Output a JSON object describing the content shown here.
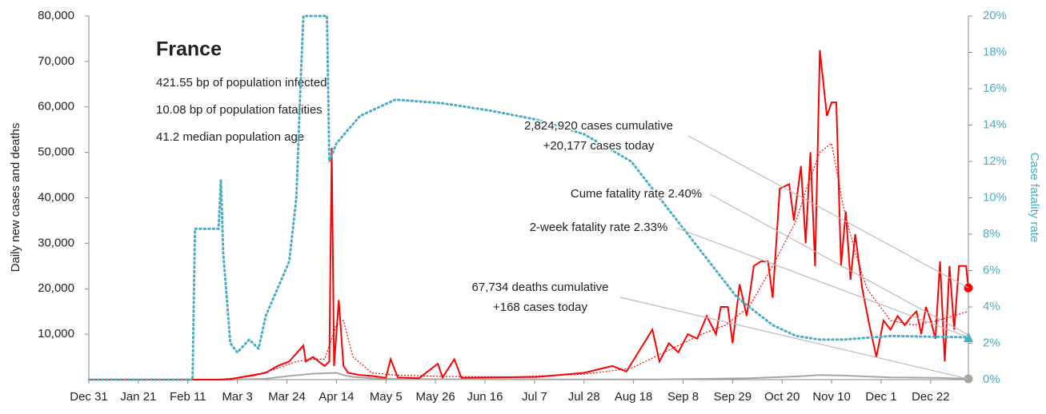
{
  "chart_data": {
    "type": "line",
    "title": "France",
    "info": [
      "421.55 bp of population infected",
      "10.08 bp of population fatalities",
      "41.2 median population age"
    ],
    "ylabel": "Daily new cases and deaths",
    "y2label": "Case fatality rate",
    "xlim": [
      0,
      373
    ],
    "xticks": [
      {
        "value": 0,
        "label": "Dec 31"
      },
      {
        "value": 21,
        "label": "Jan 21"
      },
      {
        "value": 42,
        "label": "Feb 11"
      },
      {
        "value": 63,
        "label": "Mar 3"
      },
      {
        "value": 84,
        "label": "Mar 24"
      },
      {
        "value": 105,
        "label": "Apr 14"
      },
      {
        "value": 126,
        "label": "May 5"
      },
      {
        "value": 147,
        "label": "May 26"
      },
      {
        "value": 168,
        "label": "Jun 16"
      },
      {
        "value": 189,
        "label": "Jul 7"
      },
      {
        "value": 210,
        "label": "Jul 28"
      },
      {
        "value": 231,
        "label": "Aug 18"
      },
      {
        "value": 252,
        "label": "Sep 8"
      },
      {
        "value": 273,
        "label": "Sep 29"
      },
      {
        "value": 294,
        "label": "Oct 20"
      },
      {
        "value": 315,
        "label": "Nov 10"
      },
      {
        "value": 336,
        "label": "Dec 1"
      },
      {
        "value": 357,
        "label": "Dec 22"
      }
    ],
    "ylim": [
      0,
      80000
    ],
    "yticks": [
      {
        "value": 10000,
        "label": "10,000"
      },
      {
        "value": 20000,
        "label": "20,000"
      },
      {
        "value": 30000,
        "label": "30,000"
      },
      {
        "value": 40000,
        "label": "40,000"
      },
      {
        "value": 50000,
        "label": "50,000"
      },
      {
        "value": 60000,
        "label": "60,000"
      },
      {
        "value": 70000,
        "label": "70,000"
      },
      {
        "value": 80000,
        "label": "80,000"
      }
    ],
    "y2lim": [
      0,
      20
    ],
    "y2ticks": [
      {
        "value": 0,
        "label": "0%"
      },
      {
        "value": 2,
        "label": "2%"
      },
      {
        "value": 4,
        "label": "4%"
      },
      {
        "value": 6,
        "label": "6%"
      },
      {
        "value": 8,
        "label": "8%"
      },
      {
        "value": 10,
        "label": "10%"
      },
      {
        "value": 12,
        "label": "12%"
      },
      {
        "value": 14,
        "label": "14%"
      },
      {
        "value": 16,
        "label": "16%"
      },
      {
        "value": 18,
        "label": "18%"
      },
      {
        "value": 20,
        "label": "20%"
      }
    ],
    "series": [
      {
        "color": "#ff0000",
        "style": "solid",
        "x": [
          0,
          55,
          60,
          75,
          80,
          85,
          91,
          92,
          95,
          100,
          102,
          103,
          104,
          106,
          108,
          110,
          115,
          120,
          126,
          128,
          131,
          140,
          148,
          150,
          155,
          158,
          170,
          190,
          210,
          222,
          228,
          239,
          242,
          246,
          250,
          254,
          258,
          262,
          266,
          268,
          271,
          273,
          276,
          279,
          282,
          285,
          288,
          290,
          293,
          297,
          299,
          302,
          304,
          306,
          308,
          310,
          313,
          315,
          317,
          319,
          321,
          323,
          325,
          328,
          331,
          334,
          337,
          340,
          343,
          346,
          349,
          351,
          353,
          355,
          357,
          359,
          361,
          363,
          365,
          367,
          369,
          372,
          373
        ],
        "values": [
          0,
          0,
          100,
          1500,
          3000,
          4000,
          7500,
          4000,
          5000,
          3000,
          4000,
          51000,
          3000,
          17500,
          3000,
          1500,
          1000,
          800,
          400,
          4500,
          500,
          300,
          3500,
          500,
          4500,
          400,
          500,
          600,
          1500,
          3000,
          1800,
          11000,
          4000,
          8000,
          6000,
          10000,
          9000,
          14000,
          10000,
          16000,
          16000,
          8000,
          21000,
          14000,
          25000,
          26000,
          26000,
          18000,
          42000,
          43000,
          35000,
          47000,
          30000,
          50000,
          25000,
          72500,
          58000,
          61000,
          61000,
          25000,
          37000,
          22000,
          32000,
          20000,
          12000,
          5000,
          13000,
          11000,
          14000,
          12000,
          14000,
          15000,
          10000,
          16000,
          13000,
          9000,
          26000,
          4000,
          25000,
          11000,
          25000,
          25000,
          20177
        ]
      },
      {
        "color": "#ff0000",
        "style": "dotted",
        "x": [
          0,
          55,
          70,
          80,
          88,
          95,
          100,
          105,
          108,
          112,
          120,
          130,
          150,
          180,
          210,
          230,
          240,
          250,
          260,
          270,
          280,
          290,
          300,
          305,
          310,
          315,
          320,
          325,
          330,
          340,
          350,
          360,
          373
        ],
        "values": [
          0,
          0,
          800,
          2500,
          4000,
          4500,
          4500,
          12000,
          13000,
          5000,
          1500,
          1000,
          700,
          600,
          1200,
          2500,
          5000,
          7500,
          10000,
          12000,
          16000,
          25000,
          35000,
          43000,
          50000,
          52000,
          38000,
          28000,
          20000,
          13000,
          12000,
          13000,
          15000
        ]
      },
      {
        "color": "#a6a6a6",
        "style": "solid",
        "x": [
          0,
          60,
          75,
          85,
          95,
          100,
          105,
          108,
          112,
          120,
          130,
          150,
          200,
          240,
          280,
          300,
          310,
          320,
          340,
          360,
          373
        ],
        "values": [
          0,
          0,
          200,
          800,
          1300,
          1400,
          1500,
          1000,
          600,
          300,
          150,
          80,
          30,
          50,
          300,
          700,
          1000,
          900,
          500,
          400,
          168
        ]
      },
      {
        "color": "#4bacc6",
        "style": "dotted",
        "axis": "y2",
        "x": [
          0,
          44,
          45,
          55,
          56,
          57,
          60,
          63,
          68,
          72,
          75,
          80,
          85,
          88,
          90,
          91,
          97,
          101,
          102,
          105,
          115,
          130,
          150,
          170,
          190,
          210,
          230,
          245,
          260,
          275,
          290,
          300,
          310,
          320,
          340,
          373
        ],
        "values": [
          0,
          0,
          8.3,
          8.3,
          11,
          7,
          2,
          1.5,
          2.2,
          1.7,
          3.5,
          5,
          6.5,
          10,
          17,
          20,
          20,
          20,
          12,
          13,
          14.5,
          15.4,
          15.2,
          14.8,
          14.3,
          13.5,
          12,
          9.5,
          7,
          4.5,
          3,
          2.4,
          2.2,
          2.2,
          2.4,
          2.33
        ]
      }
    ],
    "annotations": [
      {
        "lines": [
          "2,824,920 cases cumulative",
          "+20,177 cases today"
        ]
      },
      {
        "lines": [
          "Cume fatality rate 2.40%"
        ]
      },
      {
        "lines": [
          "2-week fatality rate 2.33%"
        ]
      },
      {
        "lines": [
          "67,734 deaths cumulative",
          "+168 cases today"
        ]
      }
    ]
  }
}
